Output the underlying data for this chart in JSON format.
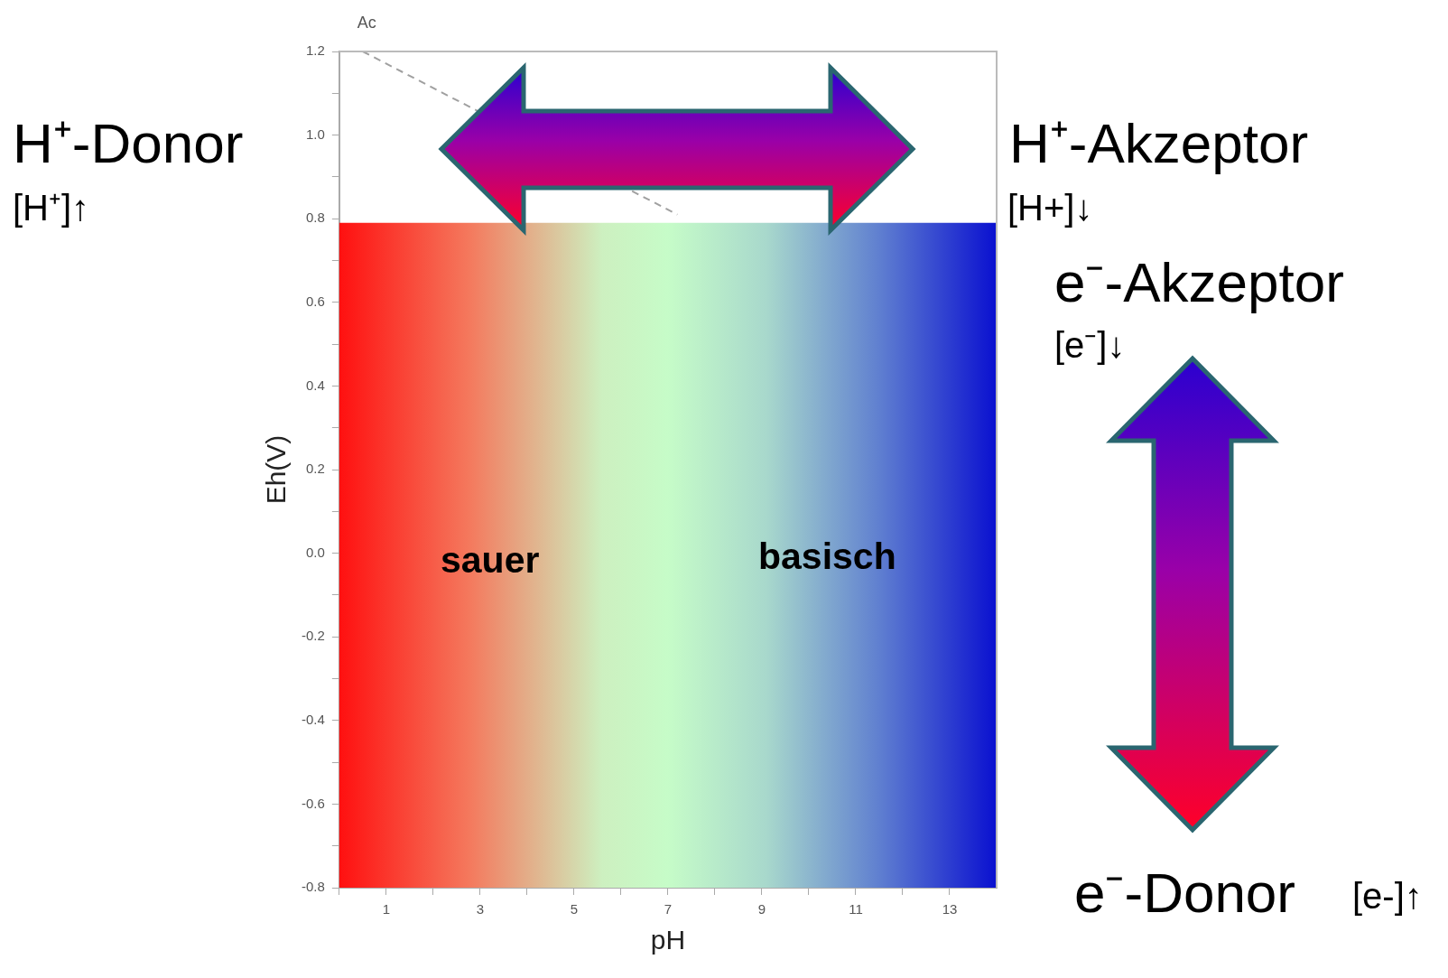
{
  "chart_data": {
    "type": "line",
    "title": "Ac",
    "xlabel": "pH",
    "ylabel": "Eh(V)",
    "xlim": [
      0,
      14
    ],
    "ylim": [
      -0.8,
      1.2
    ],
    "xticks": [
      {
        "value": 0,
        "label": null
      },
      1,
      {
        "value": 2,
        "label": null
      },
      3,
      {
        "value": 4,
        "label": null
      },
      5,
      {
        "value": 6,
        "label": null
      },
      7,
      {
        "value": 8,
        "label": null
      },
      9,
      {
        "value": 10,
        "label": null
      },
      11,
      {
        "value": 12,
        "label": null
      },
      13
    ],
    "yticks": [
      {
        "value": -0.8,
        "label": "-0.8"
      },
      {
        "value": -0.7,
        "label": null
      },
      {
        "value": -0.6,
        "label": "-0.6"
      },
      {
        "value": -0.5,
        "label": null
      },
      {
        "value": -0.4,
        "label": "-0.4"
      },
      {
        "value": -0.3,
        "label": null
      },
      {
        "value": -0.2,
        "label": "-0.2"
      },
      {
        "value": -0.1,
        "label": null
      },
      {
        "value": 0,
        "label": "0.0"
      },
      {
        "value": 0.1,
        "label": null
      },
      {
        "value": 0.2,
        "label": "0.2"
      },
      {
        "value": 0.3,
        "label": null
      },
      {
        "value": 0.4,
        "label": "0.4"
      },
      {
        "value": 0.5,
        "label": null
      },
      {
        "value": 0.6,
        "label": "0.6"
      },
      {
        "value": 0.7,
        "label": null
      },
      {
        "value": 0.8,
        "label": "0.8"
      },
      {
        "value": 0.9,
        "label": null
      },
      {
        "value": 1.0,
        "label": "1.0"
      },
      {
        "value": 1.1,
        "label": null
      },
      {
        "value": 1.2,
        "label": "1.2"
      }
    ],
    "grid": false,
    "legend": false,
    "marker": "none",
    "line_style": "dashed",
    "series": [
      {
        "x": [
          0.5,
          7.2
        ],
        "values": [
          1.2,
          0.81
        ],
        "color": "#a0a0a0"
      }
    ],
    "bands": [
      {
        "axis": "y",
        "from": -0.8,
        "to": 0.79
      }
    ],
    "annotations": [
      "sauer",
      "basisch",
      "H⁺-Donor",
      "[H⁺]↑",
      "H⁺-Akzeptor",
      "[H+]↓",
      "e⁻-Akzeptor",
      "[e⁻]↓",
      "e⁻-Donor",
      "[e-]↑"
    ]
  }
}
